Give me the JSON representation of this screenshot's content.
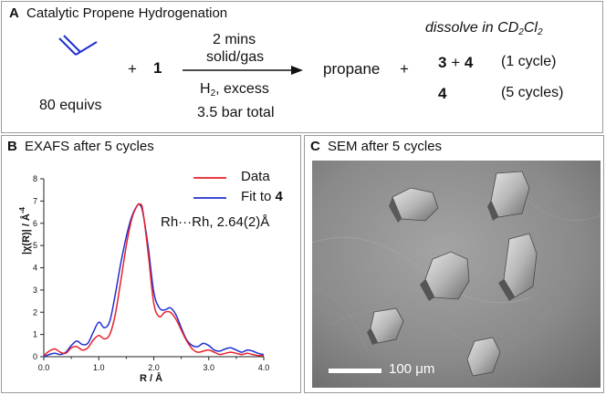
{
  "panel_a": {
    "label": "A",
    "title": "Catalytic Propene Hydrogenation",
    "plus1": "+",
    "reagent": "1",
    "equivs": "80 equivs",
    "above_arrow_1": "2 mins",
    "above_arrow_2": "solid/gas",
    "h2_main": "H",
    "h2_sub": "2",
    "h2_rest": ", excess",
    "pressure": "3.5 bar total",
    "product": "propane",
    "plus2": "+",
    "dissolve_prefix": "dissolve in CD",
    "dissolve_sub1": "2",
    "dissolve_mid": "Cl",
    "dissolve_sub2": "2",
    "row1_a": "3",
    "row1_plus": " + ",
    "row1_b": "4",
    "row1_note": "(1 cycle)",
    "row2_a": "4",
    "row2_note": "(5 cycles)"
  },
  "panel_b": {
    "label": "B",
    "title": "EXAFS after 5 cycles",
    "legend_data": "Data",
    "legend_fit_prefix": "Fit to ",
    "legend_fit_bold": "4",
    "annotation": "Rh···Rh, 2.64(2)Å",
    "ylabel_main": "|χ(R)| / Å",
    "ylabel_sup": "-4",
    "xlabel": "R / Å"
  },
  "panel_c": {
    "label": "C",
    "title": "SEM after 5 cycles",
    "scale_bar_label": "100 μm"
  },
  "colors": {
    "data_line": "#e8202a",
    "fit_line": "#1f2fd0",
    "sem_background": "#8c8c8c"
  },
  "chart_data": {
    "type": "line",
    "title": "EXAFS after 5 cycles",
    "xlabel": "R / Å",
    "ylabel": "|χ(R)| / Å-4",
    "xlim": [
      0,
      4.0
    ],
    "ylim": [
      0,
      8
    ],
    "xticks": [
      "0.0",
      "1.0",
      "2.0",
      "3.0",
      "4.0"
    ],
    "yticks": [
      "0",
      "1",
      "2",
      "3",
      "4",
      "5",
      "6",
      "7",
      "8"
    ],
    "legend_position": "top-right",
    "series": [
      {
        "name": "Data",
        "color": "#e8202a",
        "x": [
          0.0,
          0.1,
          0.2,
          0.3,
          0.4,
          0.5,
          0.6,
          0.7,
          0.8,
          0.9,
          1.0,
          1.1,
          1.2,
          1.3,
          1.4,
          1.5,
          1.6,
          1.7,
          1.75,
          1.8,
          1.9,
          2.0,
          2.1,
          2.2,
          2.3,
          2.4,
          2.5,
          2.6,
          2.7,
          2.8,
          2.9,
          3.0,
          3.1,
          3.2,
          3.3,
          3.4,
          3.5,
          3.6,
          3.7,
          3.8,
          3.9,
          4.0
        ],
        "y": [
          0.05,
          0.25,
          0.35,
          0.2,
          0.15,
          0.4,
          0.45,
          0.3,
          0.4,
          0.75,
          0.95,
          0.8,
          1.0,
          1.9,
          3.4,
          5.0,
          6.2,
          6.8,
          6.85,
          6.6,
          4.6,
          2.4,
          1.8,
          2.0,
          2.0,
          1.7,
          1.2,
          0.7,
          0.35,
          0.2,
          0.25,
          0.3,
          0.2,
          0.1,
          0.15,
          0.2,
          0.15,
          0.1,
          0.15,
          0.1,
          0.05,
          0.05
        ]
      },
      {
        "name": "Fit to 4",
        "color": "#1f2fd0",
        "x": [
          0.0,
          0.1,
          0.2,
          0.3,
          0.4,
          0.5,
          0.6,
          0.7,
          0.8,
          0.9,
          1.0,
          1.1,
          1.2,
          1.3,
          1.4,
          1.5,
          1.6,
          1.7,
          1.75,
          1.8,
          1.9,
          2.0,
          2.1,
          2.2,
          2.3,
          2.4,
          2.5,
          2.6,
          2.7,
          2.8,
          2.9,
          3.0,
          3.1,
          3.2,
          3.3,
          3.4,
          3.5,
          3.6,
          3.7,
          3.8,
          3.9,
          4.0
        ],
        "y": [
          0.0,
          0.1,
          0.15,
          0.1,
          0.2,
          0.5,
          0.7,
          0.55,
          0.6,
          1.1,
          1.55,
          1.3,
          1.6,
          2.8,
          4.2,
          5.4,
          6.3,
          6.8,
          6.82,
          6.5,
          4.9,
          2.9,
          2.2,
          2.1,
          2.2,
          1.9,
          1.3,
          0.75,
          0.5,
          0.45,
          0.6,
          0.5,
          0.3,
          0.25,
          0.35,
          0.4,
          0.3,
          0.2,
          0.3,
          0.25,
          0.15,
          0.1
        ]
      }
    ]
  }
}
